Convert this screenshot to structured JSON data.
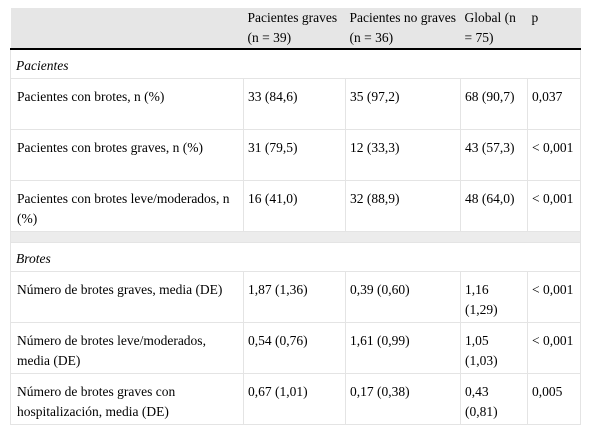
{
  "table": {
    "header": [
      "Pacientes graves (n = 39)",
      "Pacientes no graves (n = 36)",
      "Global (n = 75)",
      "p"
    ],
    "sections": [
      {
        "title": "Pacientes",
        "rows": [
          [
            "Pacientes con brotes, n (%)",
            "33 (84,6)",
            "35 (97,2)",
            "68 (90,7)",
            "0,037"
          ],
          [
            "Pacientes con brotes graves, n (%)",
            "31 (79,5)",
            "12 (33,3)",
            "43 (57,3)",
            "< 0,001"
          ],
          [
            "Pacientes con brotes leve/moderados, n (%)",
            "16 (41,0)",
            "32 (88,9)",
            "48 (64,0)",
            "< 0,001"
          ]
        ]
      },
      {
        "title": "Brotes",
        "rows": [
          [
            "Número de brotes graves, media (DE)",
            "1,87 (1,36)",
            "0,39 (0,60)",
            "1,16 (1,29)",
            "< 0,001"
          ],
          [
            "Número de brotes leve/moderados, media (DE)",
            "0,54 (0,76)",
            "1,61 (0,99)",
            "1,05 (1,03)",
            "< 0,001"
          ],
          [
            "Número de brotes graves con hospitalización, media (DE)",
            "0,67 (1,01)",
            "0,17 (0,38)",
            "0,43 (0,81)",
            "0,005"
          ]
        ]
      }
    ]
  }
}
